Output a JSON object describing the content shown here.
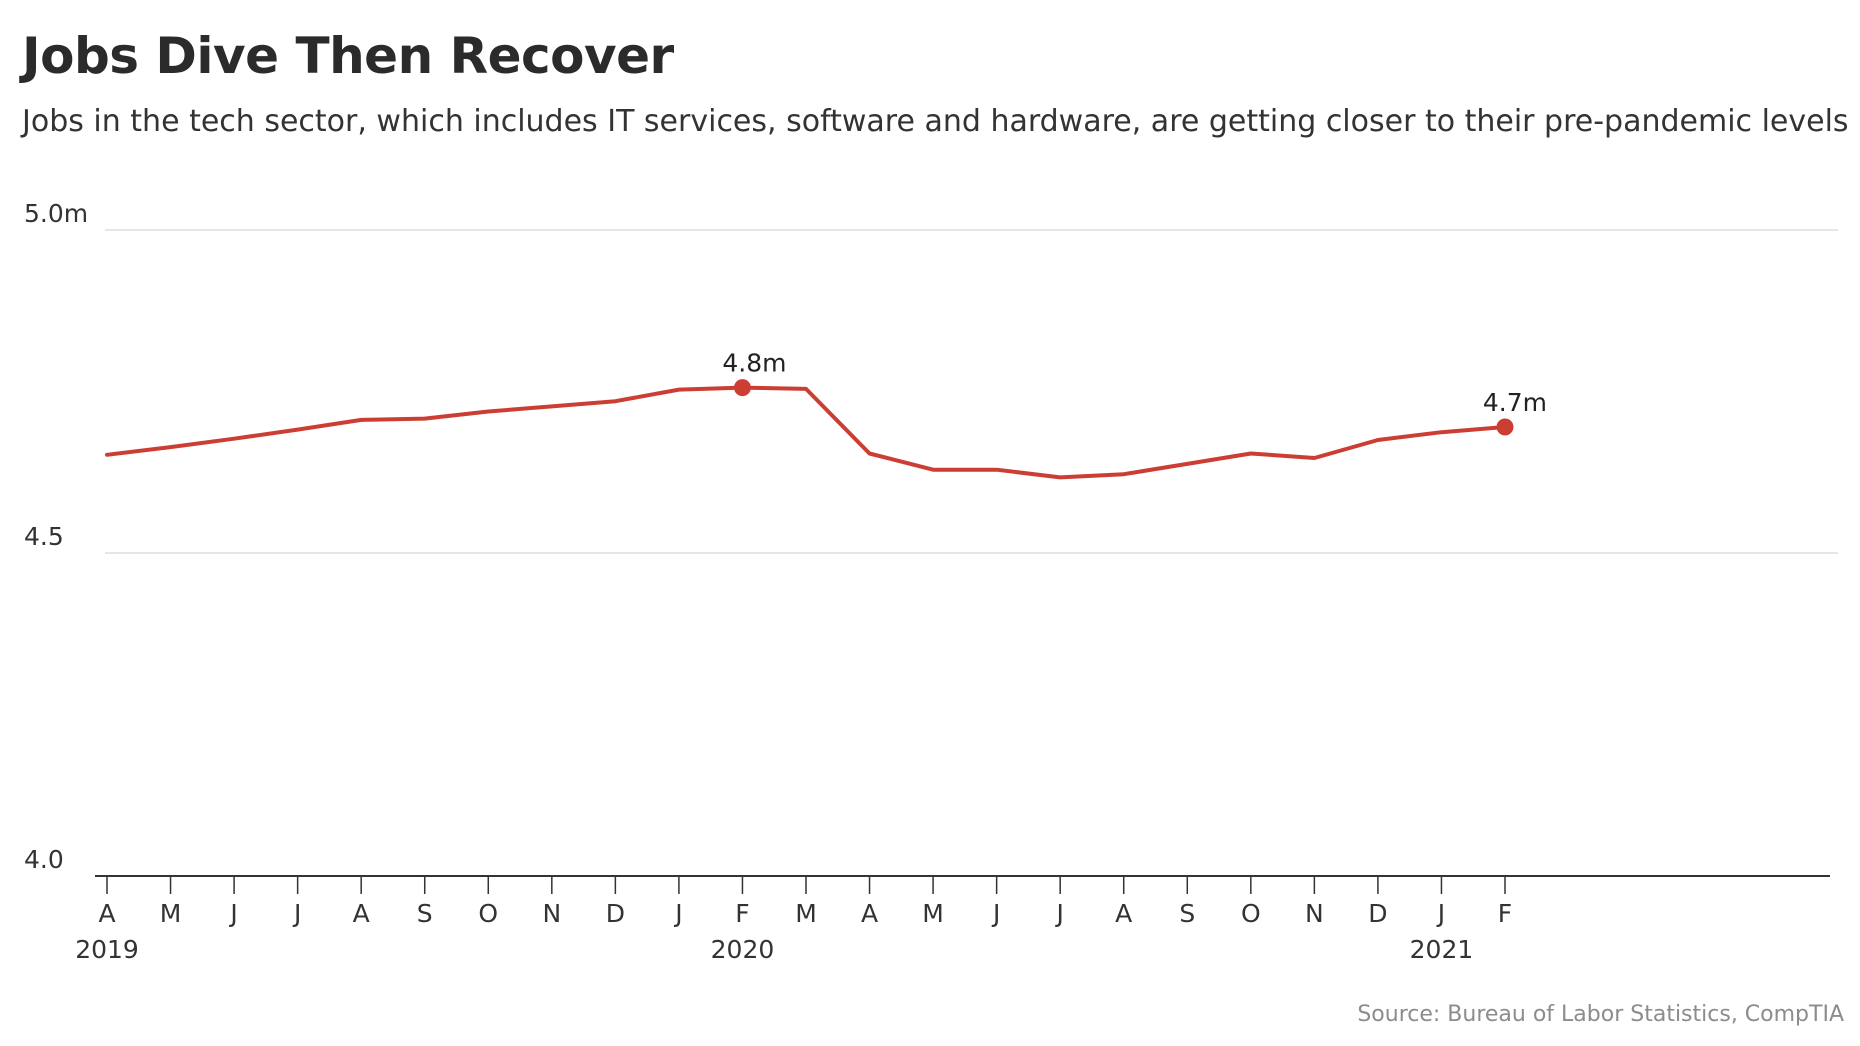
{
  "title": "Jobs Dive Then Recover",
  "subtitle": "Jobs in the tech sector, which includes IT services, software and hardware, are getting closer to their pre-pandemic levels",
  "source": "Source: Bureau of Labor Statistics, CompTIA",
  "colors": {
    "line": "#cc3d33",
    "grid": "#dddddd",
    "axis": "#333333",
    "text": "#222222",
    "source": "#8c8c8c"
  },
  "chart_data": {
    "type": "line",
    "title": "Jobs Dive Then Recover",
    "subtitle": "Jobs in the tech sector, which includes IT services, software and hardware, are getting closer to their pre-pandemic levels",
    "xlabel": "",
    "ylabel": "",
    "ylim": [
      4.0,
      5.0
    ],
    "y_ticks": [
      {
        "value": 4.0,
        "label": "4.0"
      },
      {
        "value": 4.5,
        "label": "4.5"
      },
      {
        "value": 5.0,
        "label": "5.0m"
      }
    ],
    "grid": true,
    "x": [
      "2019-04",
      "2019-05",
      "2019-06",
      "2019-07",
      "2019-08",
      "2019-09",
      "2019-10",
      "2019-11",
      "2019-12",
      "2020-01",
      "2020-02",
      "2020-03",
      "2020-04",
      "2020-05",
      "2020-06",
      "2020-07",
      "2020-08",
      "2020-09",
      "2020-10",
      "2020-11",
      "2020-12",
      "2021-01",
      "2021-02"
    ],
    "x_tick_labels": [
      "A",
      "M",
      "J",
      "J",
      "A",
      "S",
      "O",
      "N",
      "D",
      "J",
      "F",
      "M",
      "A",
      "M",
      "J",
      "J",
      "A",
      "S",
      "O",
      "N",
      "D",
      "J",
      "F"
    ],
    "year_labels": [
      {
        "index": 0,
        "label": "2019"
      },
      {
        "index": 10,
        "label": "2020"
      },
      {
        "index": 21,
        "label": "2021"
      }
    ],
    "series": [
      {
        "values": [
          4.652,
          4.664,
          4.677,
          4.691,
          4.706,
          4.708,
          4.719,
          4.727,
          4.735,
          4.753,
          4.756,
          4.754,
          4.654,
          4.629,
          4.629,
          4.617,
          4.622,
          4.638,
          4.654,
          4.647,
          4.675,
          4.687,
          4.695
        ]
      }
    ],
    "annotations": [
      {
        "index": 10,
        "label": "4.8m"
      },
      {
        "index": 22,
        "label": "4.7m"
      }
    ]
  }
}
